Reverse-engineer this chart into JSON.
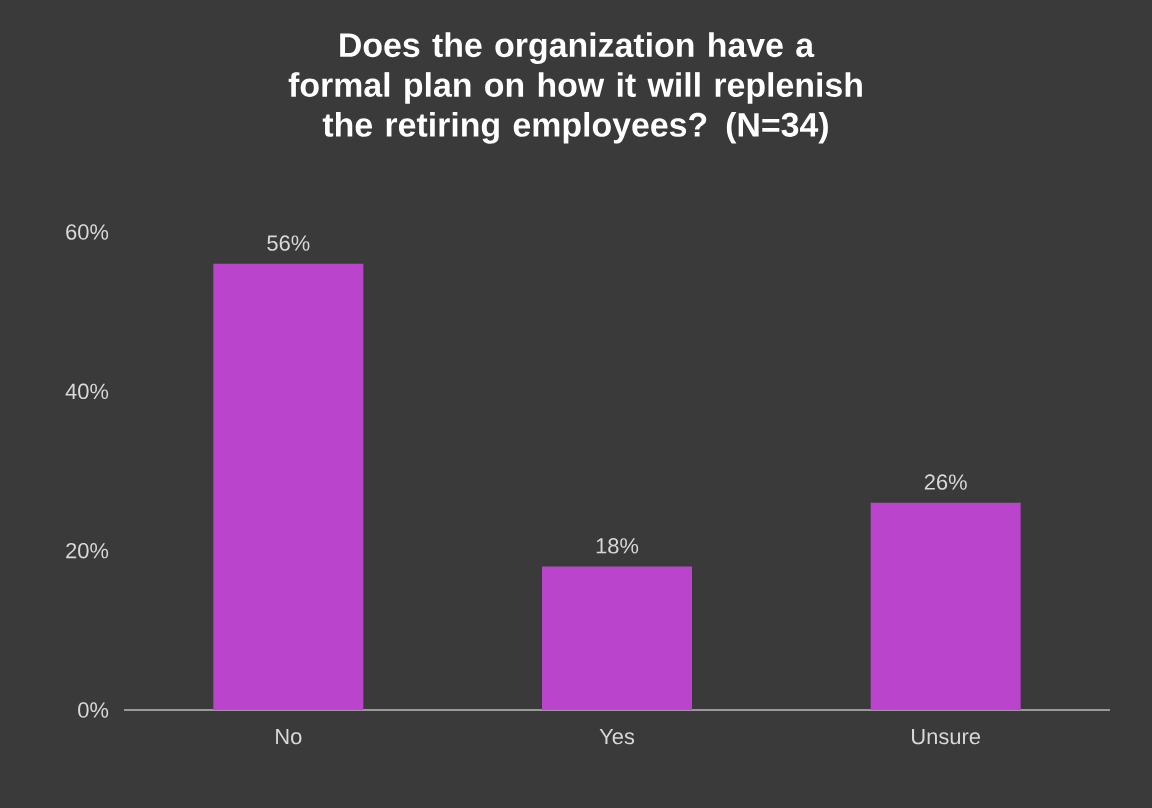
{
  "chart_data": {
    "type": "bar",
    "title": "Does the organization have a formal plan on how it will replenish the retiring employees? (N=34)",
    "categories": [
      "No",
      "Yes",
      "Unsure"
    ],
    "values": [
      56,
      18,
      26
    ],
    "value_labels": [
      "56%",
      "18%",
      "26%"
    ],
    "color": "#bb44cc",
    "ylim": [
      0,
      60
    ],
    "yticks": [
      {
        "value": 0,
        "label": "0%"
      },
      {
        "value": 20,
        "label": "20%"
      },
      {
        "value": 40,
        "label": "40%"
      },
      {
        "value": 60,
        "label": "60%"
      }
    ]
  }
}
